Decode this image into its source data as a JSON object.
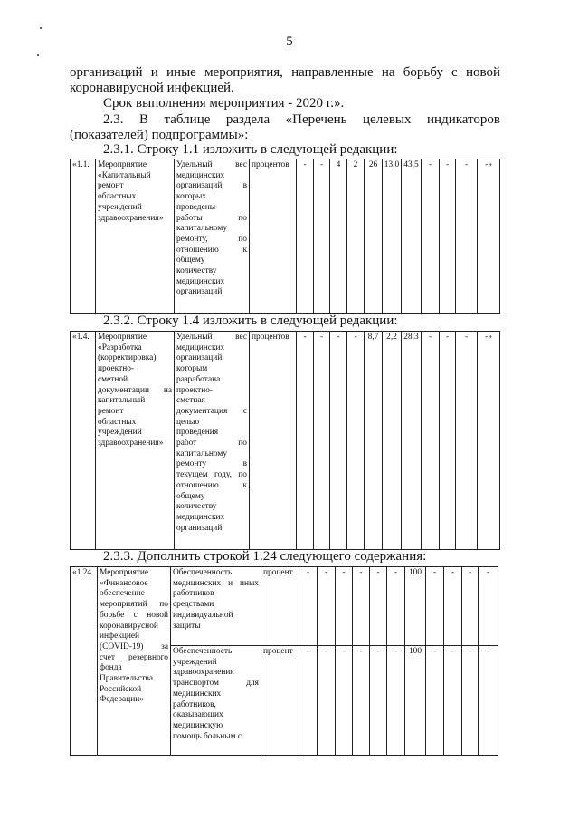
{
  "page_number": "5",
  "paragraphs": [
    "организаций и иные мероприятия, направленные на борьбу с новой",
    "коронавирусной инфекцией.",
    "Срок выполнения мероприятия - 2020 г.».",
    "2.3. В таблице раздела «Перечень целевых индикаторов",
    "(показателей) подпрограммы»:"
  ],
  "headings": [
    "2.3.1. Строку 1.1 изложить в следующей редакции:",
    "2.3.2. Строку 1.4 изложить в следующей редакции:",
    "2.3.3. Дополнить строкой 1.24 следующего содержания:"
  ],
  "tables": [
    {
      "rows": [
        {
          "num": "«1.1.",
          "event": [
            "Мероприятие",
            "«Капитальный",
            "ремонт",
            "областных",
            "учреждений",
            "здравоохранения»"
          ],
          "indicator": [
            "Удельный вес",
            "медицинских",
            "организаций, в",
            "которых",
            "проведены",
            "работы по",
            "капитальному",
            "ремонту, по",
            "отношению к",
            "общему",
            "количеству",
            "медицинских",
            "организаций"
          ],
          "unit": "процентов",
          "values": [
            "-",
            "-",
            "4",
            "2",
            "26",
            "13,0",
            "43,5",
            "-",
            "-",
            "-",
            "-»"
          ]
        }
      ]
    },
    {
      "rows": [
        {
          "num": "«1.4.",
          "event": [
            "Мероприятие",
            "«Разработка",
            "(корректировка)",
            "проектно-",
            "сметной",
            "документации на",
            "капитальный",
            "ремонт",
            "областных",
            "учреждений",
            "здравоохранения»"
          ],
          "indicator": [
            "Удельный вес",
            "медицинских",
            "организаций,",
            "которым",
            "разработана",
            "проектно-",
            "сметная",
            "документация с",
            "целью",
            "проведения",
            "работ по",
            "капитальному",
            "ремонту в",
            "текущем году, по",
            "отношению к",
            "общему",
            "количеству",
            "медицинских",
            "организаций"
          ],
          "unit": "процентов",
          "values": [
            "-",
            "-",
            "-",
            "-",
            "8,7",
            "2,2",
            "28,3",
            "-",
            "-",
            "-",
            "-»"
          ]
        }
      ]
    },
    {
      "rows": [
        {
          "num": "«1.24.",
          "event": [
            "Мероприятие",
            "«Финансовое",
            "обеспечение",
            "мероприятий по",
            "борьбе с новой",
            "коронавирусной",
            "инфекцией",
            "(COVID-19) за",
            "счет резервного",
            "фонда",
            "Правительства",
            "Российской",
            "Федерации»"
          ],
          "indicator": [
            "Обеспеченность",
            "медицинских и иных",
            "работников",
            "средствами",
            "индивидуальной",
            "защиты"
          ],
          "unit": "процент",
          "values": [
            "-",
            "-",
            "-",
            "-",
            "-",
            "-",
            "100",
            "-",
            "-",
            "-",
            "-"
          ]
        },
        {
          "indicator": [
            "Обеспеченность",
            "учреждений",
            "здравоохранения",
            "транспортом для",
            "медицинских",
            "работников,",
            "оказывающих",
            "медицинскую",
            "помощь больным с"
          ],
          "unit": "процент",
          "values": [
            "-",
            "-",
            "-",
            "-",
            "-",
            "-",
            "100",
            "-",
            "-",
            "-",
            "-"
          ]
        }
      ]
    }
  ]
}
